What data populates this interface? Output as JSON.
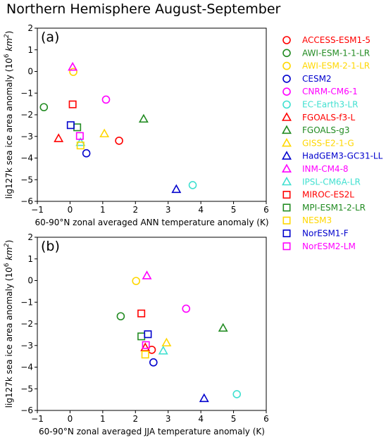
{
  "title": "Northern Hemisphere August-September",
  "chart_data": [
    {
      "type": "scatter",
      "panel_label": "(a)",
      "xlabel": "60-90°N zonal averaged ANN temperature anomaly (K)",
      "ylabel": "lig127k sea ice area anomaly (10^6 km^2)",
      "xlim": [
        -1,
        6
      ],
      "ylim": [
        -6,
        2
      ],
      "xticks": [
        -1,
        0,
        1,
        2,
        3,
        4,
        5,
        6
      ],
      "yticks": [
        -6,
        -5,
        -4,
        -3,
        -2,
        -1,
        0,
        1,
        2
      ],
      "grid": false,
      "points": [
        {
          "model": "ACCESS-ESM1-5",
          "x": 1.5,
          "y": -3.2
        },
        {
          "model": "AWI-ESM-1-1-LR",
          "x": -0.8,
          "y": -1.65
        },
        {
          "model": "AWI-ESM-2-1-LR",
          "x": 0.1,
          "y": -0.02
        },
        {
          "model": "CESM2",
          "x": 0.5,
          "y": -3.78
        },
        {
          "model": "CNRM-CM6-1",
          "x": 1.1,
          "y": -1.3
        },
        {
          "model": "EC-Earth3-LR",
          "x": 3.75,
          "y": -5.25
        },
        {
          "model": "FGOALS-f3-L",
          "x": -0.35,
          "y": -3.1
        },
        {
          "model": "FGOALS-g3",
          "x": 2.25,
          "y": -2.2
        },
        {
          "model": "GISS-E2-1-G",
          "x": 1.05,
          "y": -2.88
        },
        {
          "model": "HadGEM3-GC31-LL",
          "x": 3.25,
          "y": -5.45
        },
        {
          "model": "INM-CM4-8",
          "x": 0.08,
          "y": 0.2
        },
        {
          "model": "IPSL-CM6A-LR",
          "x": 0.32,
          "y": -3.28
        },
        {
          "model": "MIROC-ES2L",
          "x": 0.08,
          "y": -1.52
        },
        {
          "model": "MPI-ESM1-2-LR",
          "x": 0.22,
          "y": -2.58
        },
        {
          "model": "NESM3",
          "x": 0.32,
          "y": -3.42
        },
        {
          "model": "NorESM1-F",
          "x": 0.02,
          "y": -2.48
        },
        {
          "model": "NorESM2-LM",
          "x": 0.3,
          "y": -2.98
        }
      ]
    },
    {
      "type": "scatter",
      "panel_label": "(b)",
      "xlabel": "60-90°N zonal averaged JJA temperature anomaly (K)",
      "ylabel": "lig127k sea ice area anomaly (10^6 km^2)",
      "xlim": [
        -1,
        6
      ],
      "ylim": [
        -6,
        2
      ],
      "xticks": [
        -1,
        0,
        1,
        2,
        3,
        4,
        5,
        6
      ],
      "yticks": [
        -6,
        -5,
        -4,
        -3,
        -2,
        -1,
        0,
        1,
        2
      ],
      "grid": false,
      "points": [
        {
          "model": "ACCESS-ESM1-5",
          "x": 2.5,
          "y": -3.2
        },
        {
          "model": "AWI-ESM-1-1-LR",
          "x": 1.55,
          "y": -1.65
        },
        {
          "model": "AWI-ESM-2-1-LR",
          "x": 2.02,
          "y": -0.02
        },
        {
          "model": "CESM2",
          "x": 2.55,
          "y": -3.78
        },
        {
          "model": "CNRM-CM6-1",
          "x": 3.55,
          "y": -1.3
        },
        {
          "model": "EC-Earth3-LR",
          "x": 5.1,
          "y": -5.25
        },
        {
          "model": "FGOALS-f3-L",
          "x": 2.3,
          "y": -3.1
        },
        {
          "model": "FGOALS-g3",
          "x": 4.68,
          "y": -2.2
        },
        {
          "model": "GISS-E2-1-G",
          "x": 2.95,
          "y": -2.88
        },
        {
          "model": "HadGEM3-GC31-LL",
          "x": 4.1,
          "y": -5.45
        },
        {
          "model": "INM-CM4-8",
          "x": 2.35,
          "y": 0.22
        },
        {
          "model": "IPSL-CM6A-LR",
          "x": 2.85,
          "y": -3.25
        },
        {
          "model": "MIROC-ES2L",
          "x": 2.18,
          "y": -1.52
        },
        {
          "model": "MPI-ESM1-2-LR",
          "x": 2.18,
          "y": -2.58
        },
        {
          "model": "NESM3",
          "x": 2.3,
          "y": -3.42
        },
        {
          "model": "NorESM1-F",
          "x": 2.38,
          "y": -2.48
        },
        {
          "model": "NorESM2-LM",
          "x": 2.32,
          "y": -2.98
        }
      ]
    }
  ],
  "legend": {
    "placement": "right",
    "entries": [
      {
        "label": "ACCESS-ESM1-5",
        "marker": "circle",
        "color": "#ff0000"
      },
      {
        "label": "AWI-ESM-1-1-LR",
        "marker": "circle",
        "color": "#228b22"
      },
      {
        "label": "AWI-ESM-2-1-LR",
        "marker": "circle",
        "color": "#ffd700"
      },
      {
        "label": "CESM2",
        "marker": "circle",
        "color": "#0000cd"
      },
      {
        "label": "CNRM-CM6-1",
        "marker": "circle",
        "color": "#ff00ff"
      },
      {
        "label": "EC-Earth3-LR",
        "marker": "circle",
        "color": "#40e0d0"
      },
      {
        "label": "FGOALS-f3-L",
        "marker": "triangle",
        "color": "#ff0000"
      },
      {
        "label": "FGOALS-g3",
        "marker": "triangle",
        "color": "#228b22"
      },
      {
        "label": "GISS-E2-1-G",
        "marker": "triangle",
        "color": "#ffd700"
      },
      {
        "label": "HadGEM3-GC31-LL",
        "marker": "triangle",
        "color": "#0000cd"
      },
      {
        "label": "INM-CM4-8",
        "marker": "triangle",
        "color": "#ff00ff"
      },
      {
        "label": "IPSL-CM6A-LR",
        "marker": "triangle",
        "color": "#40e0d0"
      },
      {
        "label": "MIROC-ES2L",
        "marker": "square",
        "color": "#ff0000"
      },
      {
        "label": "MPI-ESM1-2-LR",
        "marker": "square",
        "color": "#228b22"
      },
      {
        "label": "NESM3",
        "marker": "square",
        "color": "#ffd700"
      },
      {
        "label": "NorESM1-F",
        "marker": "square",
        "color": "#0000cd"
      },
      {
        "label": "NorESM2-LM",
        "marker": "square",
        "color": "#ff00ff"
      }
    ]
  }
}
